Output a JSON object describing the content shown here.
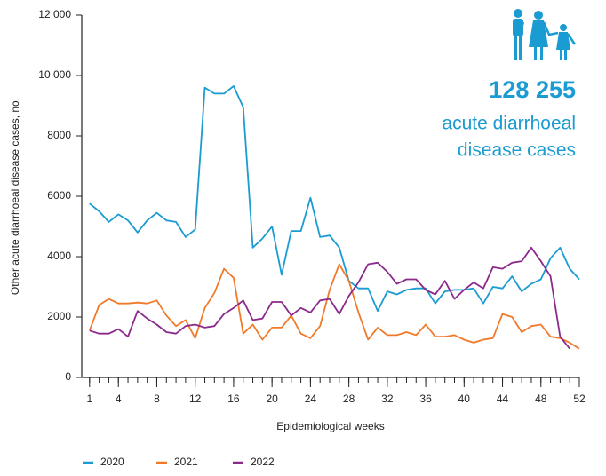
{
  "chart_data": {
    "type": "line",
    "y_label": "Other acute diarrhoeal disease cases, no.",
    "x_label": "Epidemiological weeks",
    "highlight_number": "128 255",
    "highlight_text": [
      "acute diarrhoeal",
      "disease cases"
    ],
    "x": [
      1,
      2,
      3,
      4,
      5,
      6,
      7,
      8,
      9,
      10,
      11,
      12,
      13,
      14,
      15,
      16,
      17,
      18,
      19,
      20,
      21,
      22,
      23,
      24,
      25,
      26,
      27,
      28,
      29,
      30,
      31,
      32,
      33,
      34,
      35,
      36,
      37,
      38,
      39,
      40,
      41,
      42,
      43,
      44,
      45,
      46,
      47,
      48,
      49,
      50,
      51,
      52
    ],
    "xlim": [
      0,
      52
    ],
    "xticks": [
      1,
      4,
      8,
      12,
      16,
      20,
      24,
      28,
      32,
      36,
      40,
      44,
      48,
      52
    ],
    "ylim": [
      0,
      12000
    ],
    "yticks": [
      0,
      2000,
      4000,
      6000,
      8000,
      {
        "value": 10000,
        "label": "10 000"
      },
      {
        "value": 12000,
        "label": "12 000"
      }
    ],
    "series": [
      {
        "name": "2020",
        "color": "#1a9bd1",
        "values": [
          5760,
          5500,
          5150,
          5400,
          5200,
          4800,
          5200,
          5450,
          5200,
          5150,
          4650,
          4900,
          9600,
          9400,
          9400,
          9650,
          8950,
          4300,
          4600,
          5000,
          3400,
          4850,
          4850,
          5950,
          4650,
          4700,
          4300,
          3200,
          2950,
          2950,
          2200,
          2850,
          2750,
          2900,
          2950,
          2950,
          2450,
          2850,
          2900,
          2900,
          2950,
          2450,
          3000,
          2950,
          3350,
          2850,
          3100,
          3250,
          3950,
          4300,
          3600,
          3250
        ]
      },
      {
        "name": "2021",
        "color": "#f07a2a",
        "values": [
          1550,
          2400,
          2600,
          2450,
          2450,
          2480,
          2450,
          2550,
          2050,
          1700,
          1900,
          1300,
          2300,
          2800,
          3600,
          3300,
          1450,
          1750,
          1250,
          1650,
          1650,
          2050,
          1450,
          1300,
          1700,
          2900,
          3750,
          3200,
          2150,
          1250,
          1650,
          1400,
          1400,
          1500,
          1400,
          1750,
          1350,
          1350,
          1400,
          1250,
          1150,
          1250,
          1300,
          2100,
          2000,
          1500,
          1700,
          1750,
          1350,
          1300,
          1150,
          950
        ]
      },
      {
        "name": "2022",
        "color": "#8b2a8b",
        "values": [
          1550,
          1450,
          1450,
          1600,
          1350,
          2200,
          1950,
          1750,
          1500,
          1450,
          1700,
          1750,
          1650,
          1700,
          2100,
          2300,
          2550,
          1900,
          1950,
          2500,
          2500,
          2050,
          2300,
          2150,
          2550,
          2600,
          2100,
          2700,
          3150,
          3750,
          3800,
          3500,
          3100,
          3250,
          3250,
          2900,
          2750,
          3200,
          2600,
          2900,
          3150,
          2950,
          3650,
          3600,
          3800,
          3850,
          4300,
          3850,
          3350,
          1350,
          950,
          null
        ]
      }
    ]
  }
}
